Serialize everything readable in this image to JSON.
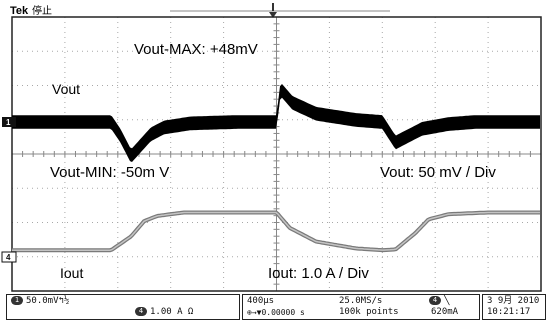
{
  "header": {
    "brand": "Tek",
    "run_state": "停止"
  },
  "annotations": {
    "vout_max": "Vout-MAX: +48mV",
    "vout_label": "Vout",
    "vout_min": "Vout-MIN: -50m V",
    "vout_scale": "Vout: 50 mV / Div",
    "iout_label": "Iout",
    "iout_scale": "Iout: 1.0 A / Div"
  },
  "channel_markers": {
    "ch1": "1",
    "ch4": "4"
  },
  "status": {
    "ch1_badge": "1",
    "ch1_scale": "50.0mV",
    "ch1_suffix": "↰½",
    "ch4_badge": "4",
    "ch4_scale": "1.00 A Ω",
    "timebase": "400µs",
    "position": "⊕→▼0.00000 s",
    "sample_rate": "25.0MS/s",
    "record_length": "100k points",
    "trigger_source": "4",
    "trigger_slope": "╲",
    "trigger_level": "620mA",
    "date": "3 9月  2010",
    "time": "10:21:17"
  },
  "colors": {
    "background": "#ffffff",
    "grid": "#a8a8a8",
    "vout_trace": "#000000",
    "iout_trace_outer": "#7a7a7a",
    "iout_trace_inner": "#c4c4c4",
    "frame": "#222222"
  },
  "chart_data": {
    "type": "line",
    "title": "",
    "xlabel": "",
    "ylabel": "",
    "x_unit": "µs",
    "x_range": [
      -2000,
      2000
    ],
    "grid": true,
    "divisions": {
      "x": 10,
      "y": 8
    },
    "series": [
      {
        "name": "Vout",
        "unit": "mV",
        "scale_per_div": 50,
        "x": [
          -2000,
          -1250,
          -1180,
          -1100,
          -1030,
          -950,
          -850,
          -650,
          -300,
          0,
          30,
          120,
          300,
          600,
          800,
          850,
          900,
          1000,
          1100,
          1300,
          1500,
          2000
        ],
        "values": [
          0,
          0,
          -20,
          -50,
          -35,
          -18,
          -8,
          -2,
          0,
          0,
          48,
          28,
          12,
          3,
          0,
          -15,
          -30,
          -20,
          -10,
          -3,
          0,
          0
        ],
        "ripple_mV_pp": 20
      },
      {
        "name": "Iout",
        "unit": "A",
        "scale_per_div": 1.0,
        "x": [
          -2000,
          -1250,
          -1100,
          -1000,
          -900,
          -700,
          -400,
          0,
          100,
          300,
          600,
          800,
          900,
          1050,
          1150,
          1300,
          1600,
          2000
        ],
        "values": [
          0.2,
          0.2,
          0.6,
          1.05,
          1.2,
          1.3,
          1.3,
          1.3,
          0.85,
          0.45,
          0.25,
          0.2,
          0.22,
          0.7,
          1.1,
          1.25,
          1.3,
          1.3
        ]
      }
    ]
  }
}
